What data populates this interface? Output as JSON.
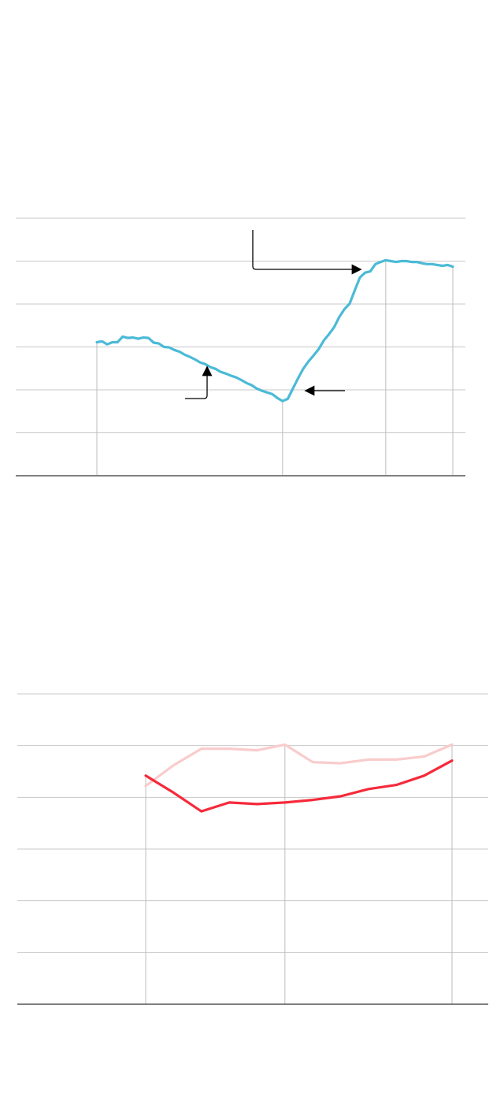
{
  "chart_data": [
    {
      "type": "line",
      "grid": true,
      "ylim": [
        0,
        6
      ],
      "y_gridlines": [
        1,
        2,
        3,
        4,
        5,
        6
      ],
      "reference_line_indices": [
        0,
        36,
        56,
        69
      ],
      "annotations": [
        {
          "kind": "elbow-arrow",
          "points_to_index": 52
        },
        {
          "kind": "elbow-arrow",
          "points_to_index": 21
        },
        {
          "kind": "arrow",
          "points_to_index": 37
        }
      ],
      "series": [
        {
          "color": "#4bbad6",
          "values": [
            3.11,
            3.13,
            3.06,
            3.11,
            3.11,
            3.24,
            3.21,
            3.22,
            3.19,
            3.22,
            3.21,
            3.1,
            3.08,
            3.0,
            2.99,
            2.93,
            2.89,
            2.82,
            2.77,
            2.71,
            2.64,
            2.6,
            2.53,
            2.49,
            2.42,
            2.38,
            2.33,
            2.29,
            2.23,
            2.16,
            2.11,
            2.03,
            1.98,
            1.94,
            1.9,
            1.81,
            1.74,
            1.79,
            2.03,
            2.27,
            2.49,
            2.66,
            2.8,
            2.95,
            3.15,
            3.3,
            3.46,
            3.7,
            3.88,
            4.01,
            4.32,
            4.62,
            4.73,
            4.76,
            4.93,
            4.98,
            5.02,
            5.0,
            4.98,
            5.0,
            5.0,
            4.98,
            4.98,
            4.95,
            4.93,
            4.93,
            4.91,
            4.89,
            4.91,
            4.87
          ]
        }
      ]
    },
    {
      "type": "line",
      "grid": true,
      "ylim": [
        0,
        6
      ],
      "y_gridlines": [
        1,
        2,
        3,
        4,
        5,
        6
      ],
      "reference_line_indices": [
        0,
        5,
        11
      ],
      "series": [
        {
          "color": "#f9cccc",
          "values": [
            4.22,
            4.62,
            4.94,
            4.94,
            4.91,
            5.02,
            4.68,
            4.66,
            4.73,
            4.73,
            4.79,
            5.02
          ]
        },
        {
          "color": "#f52a3a",
          "values": [
            4.42,
            4.09,
            3.73,
            3.9,
            3.87,
            3.9,
            3.95,
            4.02,
            4.16,
            4.24,
            4.42,
            4.71
          ]
        }
      ]
    }
  ]
}
